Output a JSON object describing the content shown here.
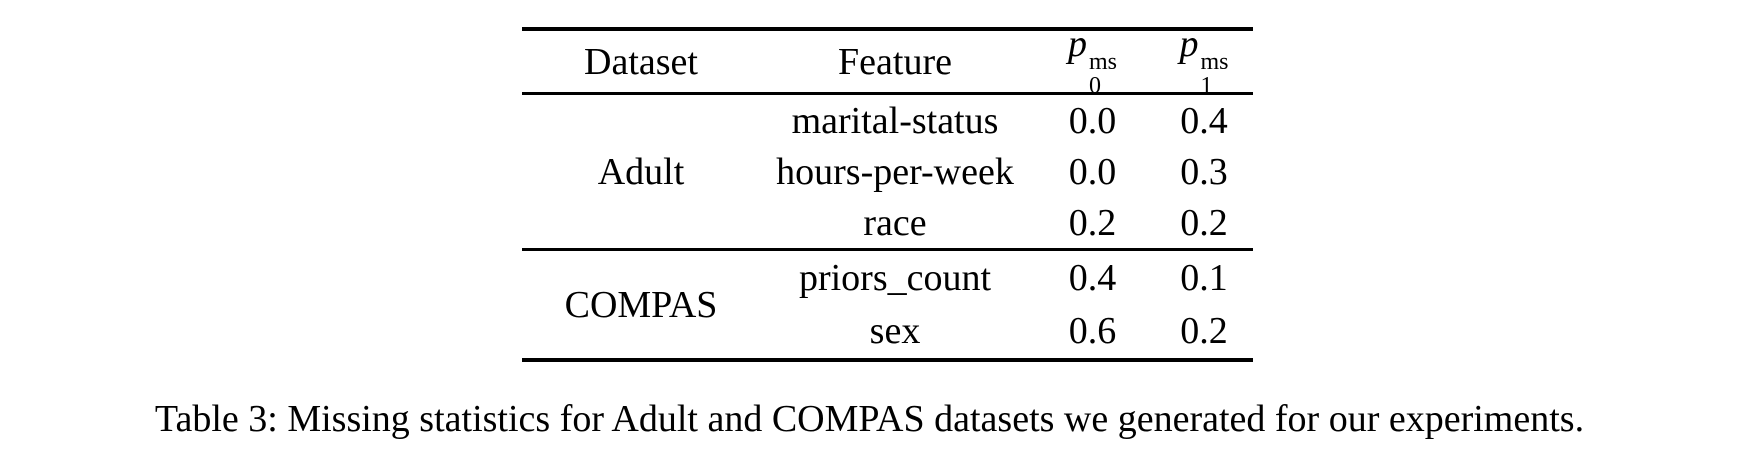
{
  "table": {
    "header": {
      "dataset": "Dataset",
      "feature": "Feature",
      "p0": {
        "base": "p",
        "sub": "0",
        "sup": "ms"
      },
      "p1": {
        "base": "p",
        "sub": "1",
        "sup": "ms"
      }
    },
    "groups": [
      {
        "dataset": "Adult",
        "rows": [
          {
            "feature": "marital-status",
            "p0": "0.0",
            "p1": "0.4"
          },
          {
            "feature": "hours-per-week",
            "p0": "0.0",
            "p1": "0.3"
          },
          {
            "feature": "race",
            "p0": "0.2",
            "p1": "0.2"
          }
        ]
      },
      {
        "dataset": "COMPAS",
        "rows": [
          {
            "feature": "priors_count",
            "p0": "0.4",
            "p1": "0.1"
          },
          {
            "feature": "sex",
            "p0": "0.6",
            "p1": "0.2"
          }
        ]
      }
    ]
  },
  "caption": "Table 3: Missing statistics for Adult and COMPAS datasets we generated for our experiments.",
  "colors": {
    "text": "#000000",
    "rule": "#000000",
    "background": "#ffffff"
  }
}
